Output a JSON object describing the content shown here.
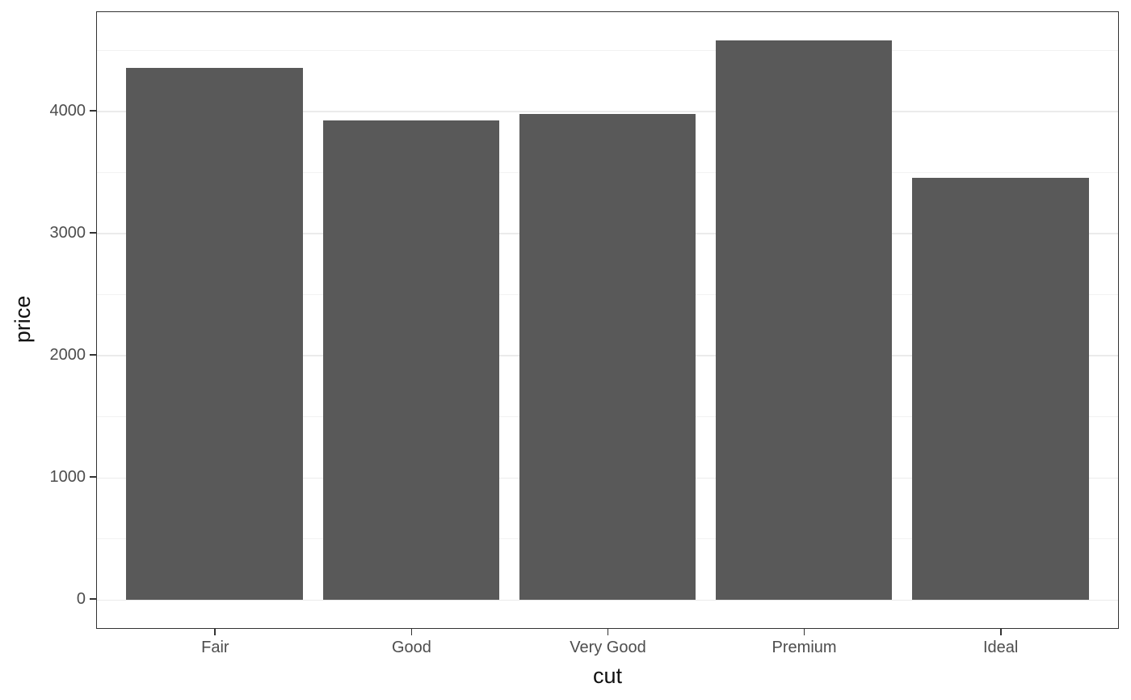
{
  "chart_data": {
    "type": "bar",
    "title": "",
    "xlabel": "cut",
    "ylabel": "price",
    "categories": [
      "Fair",
      "Good",
      "Very Good",
      "Premium",
      "Ideal"
    ],
    "values": [
      4358.76,
      3928.86,
      3981.76,
      4584.26,
      3457.54
    ],
    "y_ticks": [
      0,
      1000,
      2000,
      3000,
      4000
    ],
    "y_minor_ticks": [
      500,
      1500,
      2500,
      3500,
      4500
    ],
    "ylim": [
      -229,
      4813
    ],
    "grid": "horizontal major+minor",
    "legend": false,
    "bar_fill_color": "#595959",
    "panel_border_color": "#333333",
    "grid_major_color": "#ebebeb",
    "grid_minor_color": "#f2f2f2",
    "tick_mark_color": "#333333",
    "axis_text_color": "#4d4d4d",
    "axis_title_color": "#111111",
    "background_color": "#ffffff"
  }
}
